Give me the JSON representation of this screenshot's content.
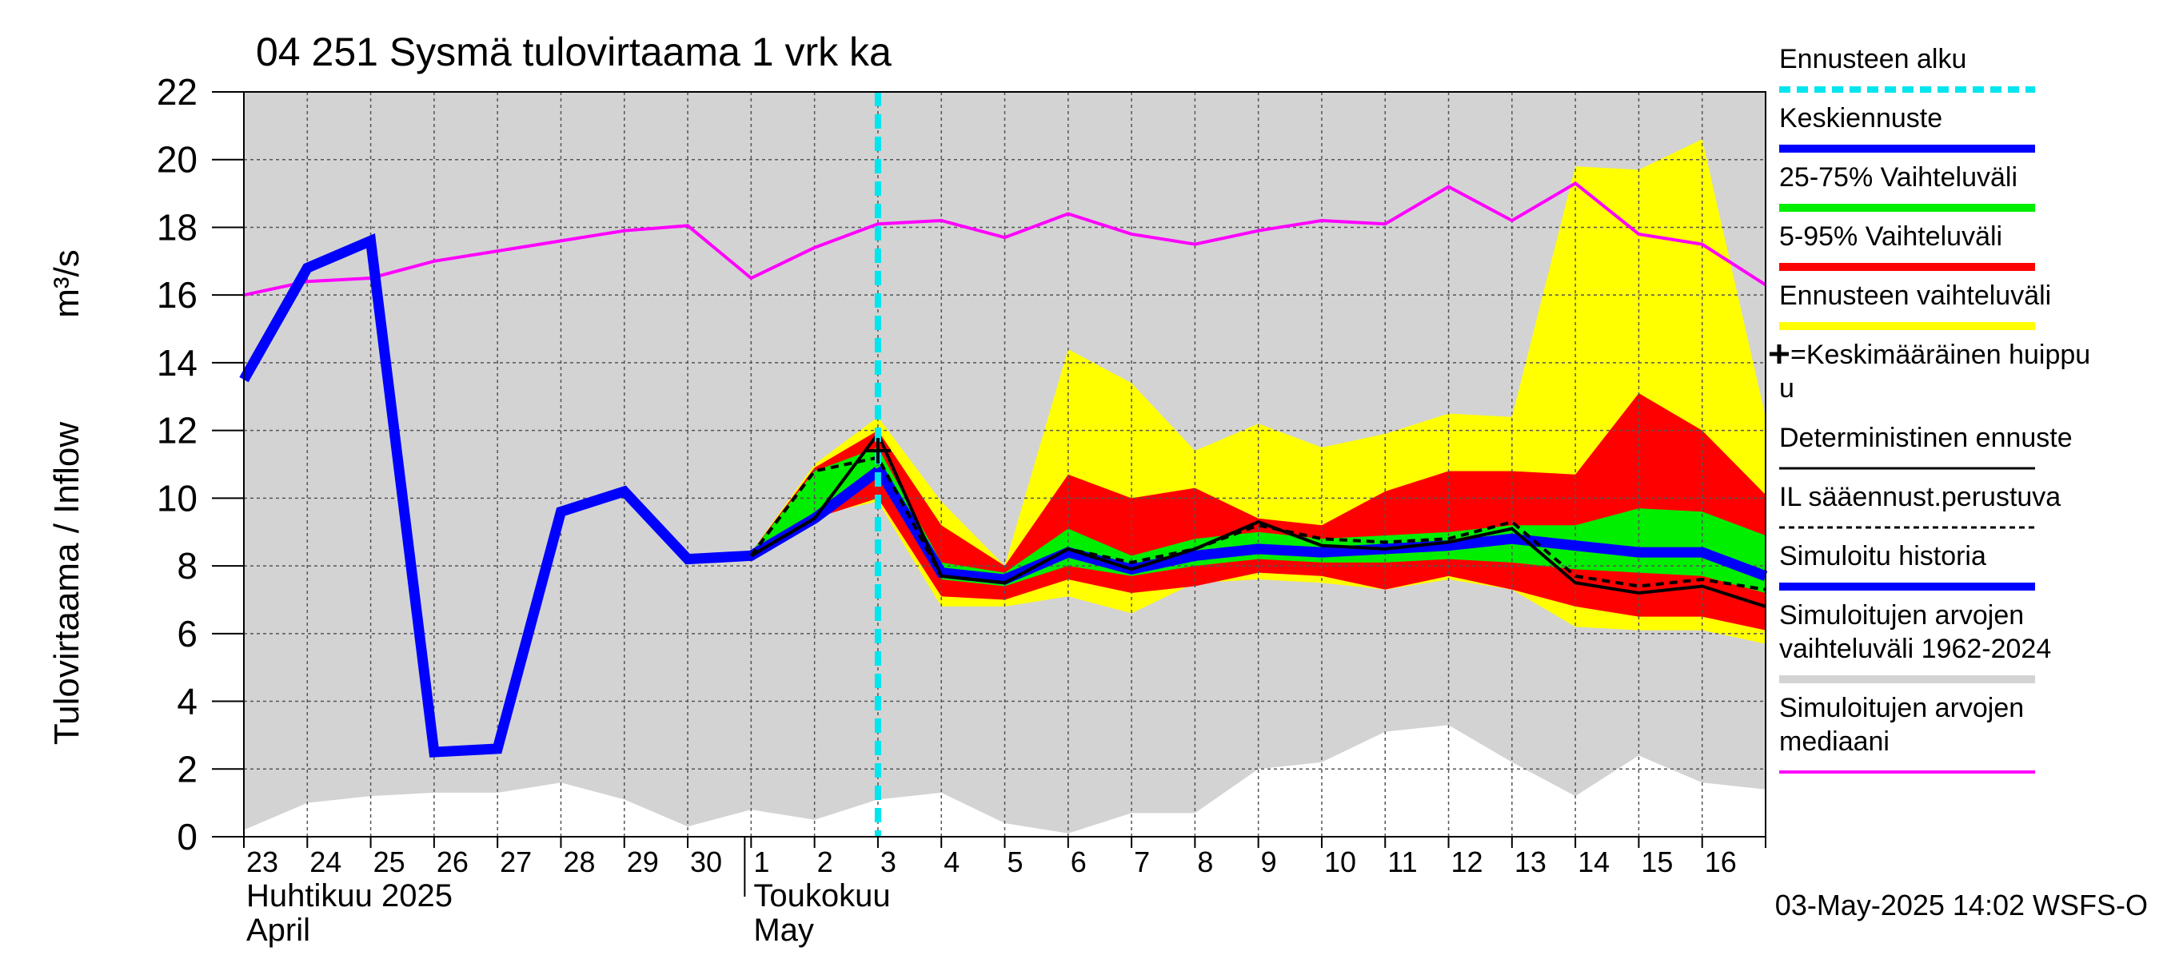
{
  "chart_data": {
    "type": "line",
    "title": "04 251 Sysmä tulovirtaama 1 vrk ka",
    "ylabel_fi": "Tulovirtaama / Inflow",
    "ylabel_unit": "m³/s",
    "ylim": [
      0,
      22
    ],
    "yticks": [
      0,
      2,
      4,
      6,
      8,
      10,
      12,
      14,
      16,
      18,
      20,
      22
    ],
    "x_day_index_range": [
      0,
      24
    ],
    "day_labels": [
      "23",
      "24",
      "25",
      "26",
      "27",
      "28",
      "29",
      "30",
      "1",
      "2",
      "3",
      "4",
      "5",
      "6",
      "7",
      "8",
      "9",
      "10",
      "11",
      "12",
      "13",
      "14",
      "15",
      "16"
    ],
    "month_labels": [
      {
        "line1": "Huhtikuu  2025",
        "line2": "April",
        "start_index": 0
      },
      {
        "line1": "Toukokuu",
        "line2": "May",
        "start_index": 8
      }
    ],
    "forecast_start_index": 10,
    "timestamp": "03-May-2025 14:02 WSFS-O",
    "series": {
      "sim_range_upper_note": "grey band upper bound at top of plot",
      "sim_range_lower": {
        "x": [
          0,
          1,
          2,
          3,
          4,
          5,
          6,
          7,
          8,
          9,
          10,
          11,
          12,
          13,
          14,
          15,
          16,
          17,
          18,
          19,
          20,
          21,
          22,
          23,
          24
        ],
        "y": [
          0.2,
          1.0,
          1.2,
          1.3,
          1.3,
          1.6,
          1.1,
          0.3,
          0.8,
          0.5,
          1.1,
          1.3,
          0.4,
          0.1,
          0.7,
          0.7,
          2.0,
          2.2,
          3.1,
          3.3,
          2.2,
          1.2,
          2.4,
          1.6,
          1.4
        ]
      },
      "median": {
        "x": [
          0,
          1,
          2,
          3,
          4,
          5,
          6,
          7,
          8,
          9,
          10,
          11,
          12,
          13,
          14,
          15,
          16,
          17,
          18,
          19,
          20,
          21,
          22,
          23,
          24
        ],
        "y": [
          16.0,
          16.4,
          16.5,
          17.0,
          17.3,
          17.6,
          17.9,
          18.05,
          16.5,
          17.4,
          18.1,
          18.2,
          17.7,
          18.4,
          17.8,
          17.5,
          17.9,
          18.2,
          18.1,
          19.2,
          18.2,
          19.3,
          17.8,
          17.5,
          16.3
        ]
      },
      "forecast_range": {
        "x": [
          8,
          9,
          10,
          11,
          12,
          13,
          14,
          15,
          16,
          17,
          18,
          19,
          20,
          21,
          22,
          23,
          24
        ],
        "upper": [
          8.4,
          11.0,
          12.4,
          9.9,
          8.0,
          14.4,
          13.4,
          11.4,
          12.2,
          11.5,
          11.9,
          12.5,
          12.4,
          19.8,
          19.7,
          20.6,
          12.4
        ],
        "lower": [
          8.4,
          9.5,
          9.9,
          6.8,
          6.8,
          7.1,
          6.6,
          7.5,
          7.6,
          7.5,
          7.3,
          7.6,
          7.3,
          6.2,
          6.1,
          6.1,
          5.7
        ]
      },
      "p5_95": {
        "x": [
          8,
          9,
          10,
          11,
          12,
          13,
          14,
          15,
          16,
          17,
          18,
          19,
          20,
          21,
          22,
          23,
          24
        ],
        "upper": [
          8.4,
          10.9,
          12.0,
          9.2,
          8.0,
          10.7,
          10.0,
          10.3,
          9.4,
          9.2,
          10.2,
          10.8,
          10.8,
          10.7,
          13.1,
          12.0,
          10.1
        ],
        "lower": [
          8.4,
          9.4,
          10.0,
          7.1,
          7.0,
          7.6,
          7.2,
          7.4,
          7.8,
          7.7,
          7.3,
          7.7,
          7.3,
          6.8,
          6.5,
          6.5,
          6.1
        ]
      },
      "p25_75": {
        "x": [
          8,
          9,
          10,
          11,
          12,
          13,
          14,
          15,
          16,
          17,
          18,
          19,
          20,
          21,
          22,
          23,
          24
        ],
        "upper": [
          8.4,
          10.8,
          11.5,
          8.1,
          7.8,
          9.1,
          8.3,
          8.8,
          9.0,
          8.8,
          8.9,
          9.0,
          9.2,
          9.2,
          9.7,
          9.6,
          8.9
        ],
        "lower": [
          8.4,
          9.5,
          10.6,
          7.6,
          7.4,
          8.0,
          7.7,
          8.0,
          8.2,
          8.1,
          8.1,
          8.2,
          8.1,
          7.9,
          7.8,
          7.7,
          7.2
        ]
      },
      "mean_forecast": {
        "x": [
          10,
          11,
          12,
          13,
          14,
          15,
          16,
          17,
          18,
          19,
          20,
          21,
          22,
          23,
          24
        ],
        "y": [
          10.9,
          7.8,
          7.6,
          8.4,
          7.9,
          8.3,
          8.5,
          8.4,
          8.5,
          8.6,
          8.8,
          8.6,
          8.4,
          8.4,
          7.7
        ]
      },
      "simulated_history": {
        "x": [
          0,
          1,
          2,
          3,
          4,
          5,
          6,
          7,
          8,
          9,
          10
        ],
        "y": [
          13.5,
          16.8,
          17.6,
          2.5,
          2.6,
          9.6,
          10.2,
          8.2,
          8.3,
          9.4,
          10.8
        ]
      },
      "deterministic": {
        "x": [
          8,
          9,
          10,
          11,
          12,
          13,
          14,
          15,
          16,
          17,
          18,
          19,
          20,
          21,
          22,
          23,
          24
        ],
        "y": [
          8.3,
          9.4,
          11.9,
          7.7,
          7.5,
          8.5,
          7.9,
          8.5,
          9.3,
          8.6,
          8.5,
          8.7,
          9.1,
          7.5,
          7.2,
          7.4,
          6.8
        ]
      },
      "il_forecast": {
        "x": [
          8,
          9,
          10,
          11,
          12,
          13,
          14,
          15,
          16,
          17,
          18,
          19,
          20,
          21,
          22,
          23,
          24
        ],
        "y": [
          8.3,
          10.8,
          11.2,
          7.7,
          7.5,
          8.5,
          8.1,
          8.5,
          9.2,
          8.8,
          8.7,
          8.8,
          9.3,
          7.7,
          7.4,
          7.6,
          7.3
        ]
      },
      "mean_peak": {
        "x": 10,
        "y": 11.4
      }
    },
    "colors": {
      "sim_range": "#d3d3d3",
      "forecast_range": "#ffff00",
      "p5_95": "#ff0000",
      "p25_75": "#00ee00",
      "mean": "#0000ff",
      "history": "#0000ff",
      "median": "#ff00ff",
      "forecast_start": "#00e5ee",
      "deterministic": "#000000"
    },
    "legend": [
      {
        "key": "forecast_start",
        "label": "Ennusteen alku",
        "style": "dashed-cyan"
      },
      {
        "key": "mean",
        "label": "Keskiennuste",
        "style": "thick-blue"
      },
      {
        "key": "p25_75",
        "label": "25-75% Vaihteluväli",
        "style": "thick-green"
      },
      {
        "key": "p5_95",
        "label": "5-95% Vaihteluväli",
        "style": "thick-red"
      },
      {
        "key": "forecast_range",
        "label": "Ennusteen vaihteluväli",
        "style": "thick-yellow"
      },
      {
        "key": "mean_peak",
        "label": "=Keskimääräinen huippu",
        "label_line2": "u",
        "style": "plus"
      },
      {
        "key": "deterministic",
        "label": "Deterministinen ennuste",
        "style": "thin-black"
      },
      {
        "key": "il_forecast",
        "label": "IL sääennust.perustuva",
        "style": "dashed-black"
      },
      {
        "key": "history",
        "label": "Simuloitu historia",
        "style": "thick-blue"
      },
      {
        "key": "sim_range",
        "label": "Simuloitujen arvojen",
        "label_line2": "vaihteluväli 1962-2024",
        "style": "thick-grey"
      },
      {
        "key": "median",
        "label": "Simuloitujen arvojen",
        "label_line2": "mediaani",
        "style": "magenta"
      }
    ]
  }
}
